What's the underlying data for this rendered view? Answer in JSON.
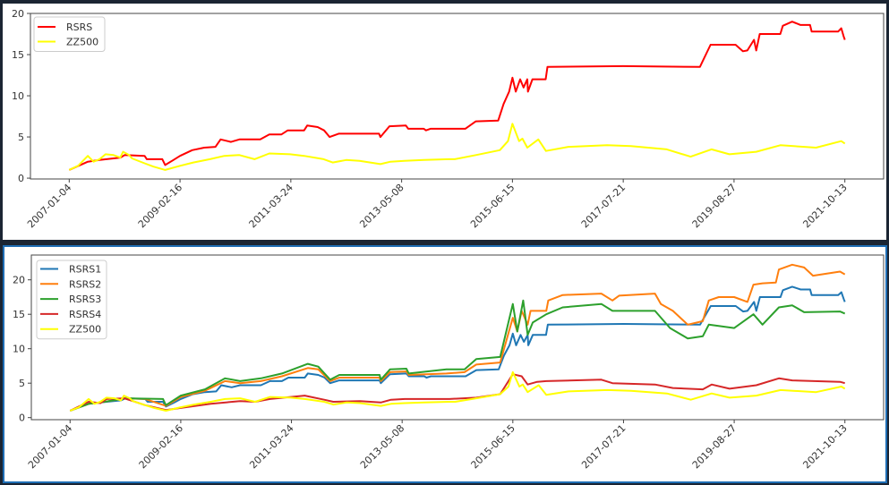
{
  "chart_data": [
    {
      "type": "line",
      "title": "",
      "xlabel": "",
      "ylabel": "",
      "x_unit": "trading-day index",
      "xlim": [
        -175,
        3675
      ],
      "ylim": [
        -0.1,
        20
      ],
      "yticks": [
        0,
        5,
        10,
        15,
        20
      ],
      "ytick_labels": [
        "0",
        "5",
        "10",
        "15",
        "20"
      ],
      "xticks": [
        0,
        500,
        1000,
        1500,
        2000,
        2500,
        3000,
        3500
      ],
      "xtick_labels": [
        "2007-01-04",
        "2009-02-16",
        "2011-03-24",
        "2013-05-08",
        "2015-06-15",
        "2017-07-21",
        "2019-08-27",
        "2021-10-13"
      ],
      "grid": false,
      "legend": "upper-left",
      "series": [
        {
          "name": "RSRS",
          "color": "#ff0000",
          "x": [
            0,
            84,
            137,
            231,
            250,
            340,
            350,
            420,
            433,
            470,
            500,
            555,
            609,
            660,
            683,
            730,
            768,
            862,
            903,
            957,
            986,
            1060,
            1074,
            1121,
            1150,
            1175,
            1216,
            1398,
            1404,
            1445,
            1519,
            1530,
            1600,
            1610,
            1630,
            1787,
            1835,
            1936,
            1960,
            1985,
            2000,
            2015,
            2035,
            2050,
            2067,
            2070,
            2090,
            2150,
            2158,
            2500,
            2846,
            2855,
            2894,
            3007,
            3040,
            3060,
            3090,
            3100,
            3116,
            3209,
            3220,
            3262,
            3300,
            3343,
            3350,
            3470,
            3484,
            3495,
            3500
          ],
          "y": [
            1.0,
            2.0,
            2.2,
            2.5,
            2.8,
            2.7,
            2.3,
            2.3,
            1.6,
            2.2,
            2.7,
            3.4,
            3.7,
            3.8,
            4.7,
            4.4,
            4.7,
            4.7,
            5.3,
            5.3,
            5.8,
            5.8,
            6.4,
            6.2,
            5.8,
            5.0,
            5.4,
            5.4,
            5.0,
            6.3,
            6.4,
            6.0,
            6.0,
            5.8,
            6.0,
            6.0,
            6.9,
            7.0,
            9.0,
            10.5,
            12.2,
            10.5,
            12.0,
            11.0,
            12.0,
            10.5,
            12.0,
            12.0,
            13.5,
            13.6,
            13.5,
            14.0,
            16.2,
            16.2,
            15.4,
            15.5,
            16.8,
            15.5,
            17.5,
            17.5,
            18.5,
            19.0,
            18.6,
            18.6,
            17.8,
            17.8,
            18.2,
            17.2,
            16.8
          ]
        },
        {
          "name": "ZZ500",
          "color": "#ffff00",
          "x": [
            0,
            40,
            84,
            110,
            137,
            164,
            200,
            230,
            243,
            270,
            283,
            340,
            380,
            433,
            500,
            560,
            635,
            700,
            768,
            836,
            903,
            997,
            1060,
            1148,
            1189,
            1250,
            1310,
            1404,
            1450,
            1512,
            1600,
            1714,
            1740,
            1835,
            1943,
            1980,
            2000,
            2030,
            2045,
            2067,
            2117,
            2151,
            2252,
            2427,
            2534,
            2696,
            2804,
            2898,
            2979,
            3100,
            3209,
            3370,
            3484,
            3500
          ],
          "y": [
            1.0,
            1.5,
            2.7,
            2.0,
            2.3,
            2.9,
            2.8,
            2.5,
            3.2,
            2.8,
            2.4,
            1.8,
            1.4,
            1.0,
            1.5,
            1.9,
            2.3,
            2.7,
            2.8,
            2.3,
            3.0,
            2.9,
            2.7,
            2.3,
            1.9,
            2.2,
            2.1,
            1.7,
            2.0,
            2.1,
            2.2,
            2.3,
            2.3,
            2.8,
            3.4,
            4.5,
            6.6,
            4.5,
            4.8,
            3.7,
            4.7,
            3.3,
            3.8,
            4.0,
            3.9,
            3.5,
            2.6,
            3.5,
            2.9,
            3.2,
            4.0,
            3.7,
            4.5,
            4.2
          ]
        }
      ]
    },
    {
      "type": "line",
      "title": "",
      "xlabel": "",
      "ylabel": "",
      "x_unit": "trading-day index",
      "xlim": [
        -175,
        3675
      ],
      "ylim": [
        -0.3,
        23.6
      ],
      "yticks": [
        0,
        5,
        10,
        15,
        20
      ],
      "ytick_labels": [
        "0",
        "5",
        "10",
        "15",
        "20"
      ],
      "xticks": [
        0,
        500,
        1000,
        1500,
        2000,
        2500,
        3000,
        3500
      ],
      "xtick_labels": [
        "2007-01-04",
        "2009-02-16",
        "2011-03-24",
        "2013-05-08",
        "2015-06-15",
        "2017-07-21",
        "2019-08-27",
        "2021-10-13"
      ],
      "grid": false,
      "legend": "upper-left",
      "series": [
        {
          "name": "RSRS1",
          "color": "#1f77b4",
          "x": [
            0,
            84,
            137,
            231,
            250,
            340,
            350,
            420,
            433,
            470,
            500,
            555,
            609,
            660,
            683,
            730,
            768,
            862,
            903,
            957,
            986,
            1060,
            1074,
            1121,
            1150,
            1175,
            1216,
            1398,
            1404,
            1445,
            1519,
            1530,
            1600,
            1610,
            1630,
            1787,
            1835,
            1936,
            1960,
            1985,
            2000,
            2015,
            2035,
            2050,
            2067,
            2070,
            2090,
            2150,
            2158,
            2500,
            2846,
            2855,
            2894,
            3007,
            3040,
            3060,
            3090,
            3100,
            3116,
            3209,
            3220,
            3262,
            3300,
            3343,
            3350,
            3470,
            3484,
            3495,
            3500
          ],
          "y": [
            1.0,
            2.0,
            2.2,
            2.5,
            2.8,
            2.7,
            2.3,
            2.3,
            1.6,
            2.2,
            2.7,
            3.4,
            3.7,
            3.8,
            4.7,
            4.4,
            4.7,
            4.7,
            5.3,
            5.3,
            5.8,
            5.8,
            6.4,
            6.2,
            5.8,
            5.0,
            5.4,
            5.4,
            5.0,
            6.3,
            6.4,
            6.0,
            6.0,
            5.8,
            6.0,
            6.0,
            6.9,
            7.0,
            9.0,
            10.5,
            12.2,
            10.5,
            12.0,
            11.0,
            12.0,
            10.5,
            12.0,
            12.0,
            13.5,
            13.6,
            13.5,
            14.0,
            16.2,
            16.2,
            15.4,
            15.5,
            16.8,
            15.5,
            17.5,
            17.5,
            18.5,
            19.0,
            18.6,
            18.6,
            17.8,
            17.8,
            18.2,
            17.2,
            16.8
          ]
        },
        {
          "name": "RSRS2",
          "color": "#ff7f0e",
          "x": [
            0,
            84,
            137,
            250,
            340,
            433,
            500,
            609,
            700,
            768,
            862,
            957,
            1074,
            1121,
            1175,
            1216,
            1398,
            1404,
            1445,
            1519,
            1530,
            1700,
            1782,
            1835,
            1943,
            2000,
            2020,
            2040,
            2067,
            2080,
            2151,
            2160,
            2225,
            2400,
            2450,
            2480,
            2642,
            2669,
            2723,
            2790,
            2858,
            2885,
            2930,
            3000,
            3060,
            3087,
            3128,
            3188,
            3202,
            3262,
            3316,
            3356,
            3478,
            3500
          ],
          "y": [
            1.0,
            2.0,
            2.2,
            2.8,
            2.7,
            1.7,
            3.0,
            3.9,
            5.3,
            5.0,
            5.3,
            6.0,
            7.2,
            7.0,
            5.3,
            5.8,
            5.8,
            5.3,
            6.6,
            6.7,
            6.2,
            6.4,
            6.6,
            7.7,
            8.0,
            14.5,
            12.5,
            15.5,
            13.5,
            15.5,
            15.5,
            17.0,
            17.8,
            18.0,
            17.0,
            17.7,
            18.0,
            16.5,
            15.5,
            13.5,
            14.0,
            17.0,
            17.5,
            17.5,
            16.8,
            19.3,
            19.5,
            19.6,
            21.5,
            22.2,
            21.8,
            20.6,
            21.2,
            20.8
          ]
        },
        {
          "name": "RSRS3",
          "color": "#2ca02c",
          "x": [
            0,
            84,
            137,
            250,
            420,
            433,
            500,
            609,
            700,
            768,
            862,
            957,
            1074,
            1121,
            1175,
            1216,
            1398,
            1404,
            1445,
            1519,
            1530,
            1700,
            1782,
            1835,
            1943,
            2000,
            2020,
            2047,
            2067,
            2090,
            2151,
            2225,
            2400,
            2450,
            2642,
            2710,
            2790,
            2858,
            2885,
            3000,
            3087,
            3128,
            3202,
            3262,
            3316,
            3478,
            3500
          ],
          "y": [
            1.0,
            2.0,
            2.2,
            2.8,
            2.7,
            1.8,
            3.2,
            4.1,
            5.7,
            5.3,
            5.7,
            6.4,
            7.8,
            7.4,
            5.5,
            6.2,
            6.2,
            5.5,
            7.0,
            7.1,
            6.4,
            7.0,
            7.0,
            8.5,
            8.8,
            16.5,
            12.5,
            17.0,
            12.0,
            13.8,
            15.0,
            16.0,
            16.5,
            15.5,
            15.5,
            13.0,
            11.5,
            11.8,
            13.5,
            13.0,
            15.0,
            13.5,
            16.0,
            16.3,
            15.3,
            15.4,
            15.1
          ]
        },
        {
          "name": "RSRS4",
          "color": "#d62728",
          "x": [
            0,
            84,
            137,
            164,
            243,
            283,
            340,
            433,
            500,
            635,
            768,
            836,
            903,
            997,
            1060,
            1148,
            1189,
            1310,
            1404,
            1450,
            1512,
            1714,
            1835,
            1943,
            2000,
            2040,
            2067,
            2110,
            2151,
            2400,
            2450,
            2642,
            2723,
            2858,
            2898,
            2979,
            3100,
            3202,
            3262,
            3478,
            3500
          ],
          "y": [
            1.0,
            2.3,
            2.1,
            2.7,
            2.8,
            2.4,
            1.8,
            1.1,
            1.4,
            2.0,
            2.4,
            2.3,
            2.7,
            3.0,
            3.2,
            2.6,
            2.3,
            2.4,
            2.2,
            2.6,
            2.7,
            2.7,
            2.9,
            3.4,
            6.3,
            6.0,
            4.8,
            5.2,
            5.3,
            5.5,
            5.0,
            4.8,
            4.3,
            4.1,
            4.8,
            4.2,
            4.7,
            5.7,
            5.4,
            5.2,
            5.0
          ]
        },
        {
          "name": "ZZ500",
          "color": "#ffff00",
          "x": [
            0,
            40,
            84,
            110,
            137,
            164,
            200,
            230,
            243,
            270,
            283,
            340,
            380,
            433,
            500,
            560,
            635,
            700,
            768,
            836,
            903,
            997,
            1060,
            1148,
            1189,
            1250,
            1310,
            1404,
            1450,
            1512,
            1600,
            1714,
            1740,
            1835,
            1943,
            1980,
            2000,
            2030,
            2045,
            2067,
            2117,
            2151,
            2252,
            2427,
            2534,
            2696,
            2804,
            2898,
            2979,
            3100,
            3209,
            3370,
            3484,
            3500
          ],
          "y": [
            1.0,
            1.5,
            2.7,
            2.0,
            2.3,
            2.9,
            2.8,
            2.5,
            3.2,
            2.8,
            2.4,
            1.8,
            1.4,
            1.0,
            1.5,
            1.9,
            2.3,
            2.7,
            2.8,
            2.3,
            3.0,
            2.9,
            2.7,
            2.3,
            1.9,
            2.2,
            2.1,
            1.7,
            2.0,
            2.1,
            2.2,
            2.3,
            2.3,
            2.8,
            3.4,
            4.5,
            6.6,
            4.5,
            4.8,
            3.7,
            4.7,
            3.3,
            3.8,
            4.0,
            3.9,
            3.5,
            2.6,
            3.5,
            2.9,
            3.2,
            4.0,
            3.7,
            4.5,
            4.2
          ]
        }
      ]
    }
  ]
}
